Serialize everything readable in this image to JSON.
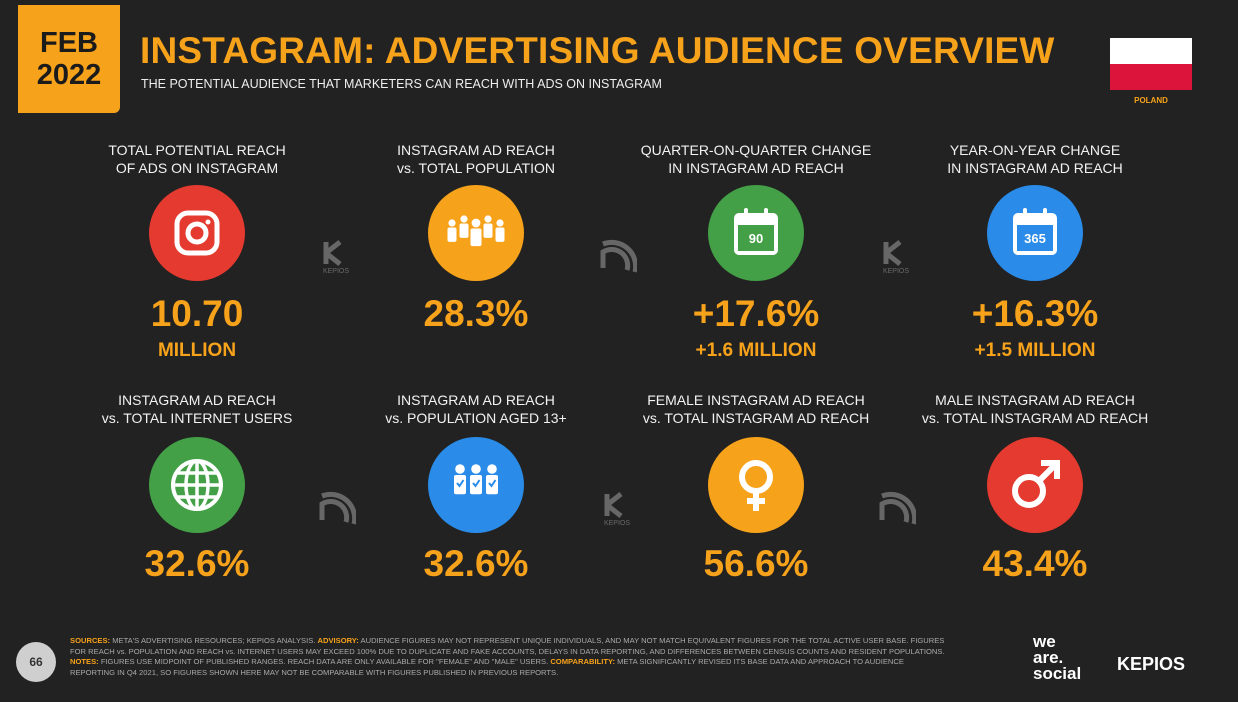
{
  "header": {
    "month": "FEB",
    "year": "2022",
    "title": "INSTAGRAM: ADVERTISING AUDIENCE OVERVIEW",
    "subtitle": "THE POTENTIAL AUDIENCE THAT MARKETERS CAN REACH WITH ADS ON INSTAGRAM",
    "country": "POLAND"
  },
  "metrics": [
    {
      "label": [
        "TOTAL POTENTIAL REACH",
        "OF ADS ON INSTAGRAM"
      ],
      "value": "10.70",
      "sub": "MILLION"
    },
    {
      "label": [
        "INSTAGRAM AD REACH",
        "vs. TOTAL POPULATION"
      ],
      "value": "28.3%"
    },
    {
      "label": [
        "QUARTER-ON-QUARTER CHANGE",
        "IN INSTAGRAM AD REACH"
      ],
      "value": "+17.6%",
      "sub": "+1.6 MILLION",
      "icon_text": "90"
    },
    {
      "label": [
        "YEAR-ON-YEAR CHANGE",
        "IN INSTAGRAM AD REACH"
      ],
      "value": "+16.3%",
      "sub": "+1.5 MILLION",
      "icon_text": "365"
    },
    {
      "label": [
        "INSTAGRAM AD REACH",
        "vs. TOTAL INTERNET USERS"
      ],
      "value": "32.6%"
    },
    {
      "label": [
        "INSTAGRAM AD REACH",
        "vs. POPULATION AGED 13+"
      ],
      "value": "32.6%"
    },
    {
      "label": [
        "FEMALE INSTAGRAM AD REACH",
        "vs. TOTAL INSTAGRAM AD REACH"
      ],
      "value": "56.6%"
    },
    {
      "label": [
        "MALE INSTAGRAM AD REACH",
        "vs. TOTAL INSTAGRAM AD REACH"
      ],
      "value": "43.4%"
    }
  ],
  "watermark": "KEPIOS",
  "footer": {
    "page": "66",
    "notes": [
      {
        "label": "SOURCES:",
        "text": " META'S ADVERTISING RESOURCES; KEPIOS ANALYSIS. "
      },
      {
        "label": "ADVISORY:",
        "text": " AUDIENCE FIGURES MAY NOT REPRESENT UNIQUE INDIVIDUALS, AND MAY NOT MATCH EQUIVALENT FIGURES FOR THE TOTAL ACTIVE USER BASE. FIGURES FOR REACH vs. POPULATION AND REACH vs. INTERNET USERS MAY EXCEED 100% DUE TO DUPLICATE AND FAKE ACCOUNTS, DELAYS IN DATA REPORTING, AND DIFFERENCES BETWEEN CENSUS COUNTS AND RESIDENT POPULATIONS. "
      },
      {
        "label": "NOTES:",
        "text": " FIGURES USE MIDPOINT OF PUBLISHED RANGES. REACH DATA ARE ONLY AVAILABLE FOR \"FEMALE\" AND \"MALE\" USERS. "
      },
      {
        "label": "COMPARABILITY:",
        "text": " META SIGNIFICANTLY REVISED ITS BASE DATA AND APPROACH TO AUDIENCE REPORTING IN Q4 2021, SO FIGURES SHOWN HERE MAY NOT BE COMPARABLE WITH FIGURES PUBLISHED IN PREVIOUS REPORTS."
      }
    ],
    "brand1": [
      "we",
      "are.",
      "social"
    ],
    "brand2": "KEPIOS"
  }
}
